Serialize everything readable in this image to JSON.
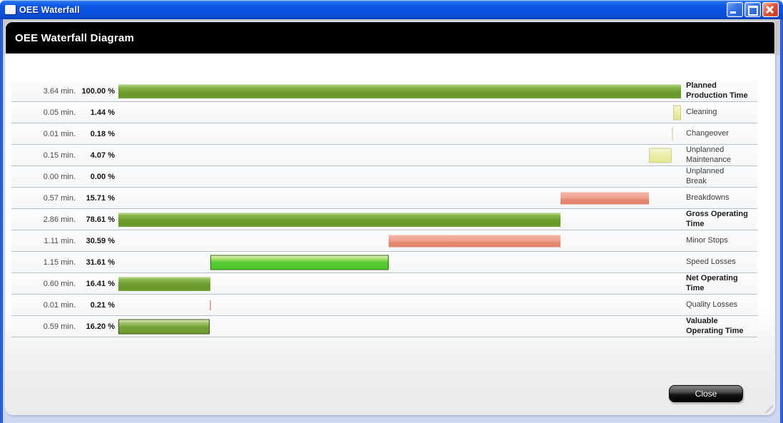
{
  "window": {
    "title": "OEE Waterfall",
    "controls": [
      "minimize",
      "maximize",
      "close"
    ]
  },
  "header": {
    "title": "OEE Waterfall Diagram"
  },
  "footer": {
    "close_label": "Close"
  },
  "colors": {
    "titlebar_blue": "#0c57e8",
    "header_black": "#000000",
    "gain_green": "#6f9f31",
    "loss_red": "#efa18f",
    "loss_yellow": "#ecefae",
    "speed_green": "#58cb34",
    "separator_gray": "#b9bfc8"
  },
  "chart_data": {
    "type": "bar",
    "subtype": "horizontal-waterfall",
    "title": "OEE Waterfall Diagram",
    "x_axis_unit": "% of planned production time",
    "xlim": [
      0,
      100
    ],
    "grid": false,
    "legend_position": "right-inline-labels",
    "categories": [
      "Planned Production Time",
      "Cleaning",
      "Changeover",
      "Unplanned Maintenance",
      "Unplanned Break",
      "Breakdowns",
      "Gross Operating Time",
      "Minor Stops",
      "Speed Losses",
      "Net Operating Time",
      "Quality Losses",
      "Valuable Operating Time"
    ],
    "rows": [
      {
        "time": "3.64 min.",
        "time_min": 3.64,
        "pct": "100.00 %",
        "pct_value": 100.0,
        "label": "Planned\nProduction Time",
        "bold": true,
        "bar_left_pct": 0,
        "bar_width_pct": 100.0,
        "style": "olive"
      },
      {
        "time": "0.05 min.",
        "time_min": 0.05,
        "pct": "1.44 %",
        "pct_value": 1.44,
        "label": "Cleaning",
        "bold": false,
        "bar_left_pct": 98.56,
        "bar_width_pct": 1.44,
        "style": "yellow"
      },
      {
        "time": "0.01 min.",
        "time_min": 0.01,
        "pct": "0.18 %",
        "pct_value": 0.18,
        "label": "Changeover",
        "bold": false,
        "bar_left_pct": 98.38,
        "bar_width_pct": 0.18,
        "style": "yellow-sliver"
      },
      {
        "time": "0.15 min.",
        "time_min": 0.15,
        "pct": "4.07 %",
        "pct_value": 4.07,
        "label": "Unplanned\nMaintenance",
        "bold": false,
        "bar_left_pct": 94.31,
        "bar_width_pct": 4.07,
        "style": "yellow"
      },
      {
        "time": "0.00 min.",
        "time_min": 0.0,
        "pct": "0.00 %",
        "pct_value": 0.0,
        "label": "Unplanned\nBreak",
        "bold": false,
        "bar_left_pct": 94.31,
        "bar_width_pct": 0.0,
        "style": "none"
      },
      {
        "time": "0.57 min.",
        "time_min": 0.57,
        "pct": "15.71 %",
        "pct_value": 15.71,
        "label": "Breakdowns",
        "bold": false,
        "bar_left_pct": 78.6,
        "bar_width_pct": 15.71,
        "style": "red"
      },
      {
        "time": "2.86 min.",
        "time_min": 2.86,
        "pct": "78.61 %",
        "pct_value": 78.61,
        "label": "Gross Operating\nTime",
        "bold": true,
        "bar_left_pct": 0,
        "bar_width_pct": 78.61,
        "style": "olive"
      },
      {
        "time": "1.11 min.",
        "time_min": 1.11,
        "pct": "30.59 %",
        "pct_value": 30.59,
        "label": "Minor Stops",
        "bold": false,
        "bar_left_pct": 48.02,
        "bar_width_pct": 30.59,
        "style": "red"
      },
      {
        "time": "1.15 min.",
        "time_min": 1.15,
        "pct": "31.61 %",
        "pct_value": 31.61,
        "label": "Speed Losses",
        "bold": false,
        "bar_left_pct": 16.41,
        "bar_width_pct": 31.61,
        "style": "bright"
      },
      {
        "time": "0.60 min.",
        "time_min": 0.6,
        "pct": "16.41 %",
        "pct_value": 16.41,
        "label": "Net Operating\nTime",
        "bold": true,
        "bar_left_pct": 0,
        "bar_width_pct": 16.41,
        "style": "olive"
      },
      {
        "time": "0.01 min.",
        "time_min": 0.01,
        "pct": "0.21 %",
        "pct_value": 0.21,
        "label": "Quality Losses",
        "bold": false,
        "bar_left_pct": 16.2,
        "bar_width_pct": 0.21,
        "style": "red-sliver"
      },
      {
        "time": "0.59 min.",
        "time_min": 0.59,
        "pct": "16.20 %",
        "pct_value": 16.2,
        "label": "Valuable\nOperating Time",
        "bold": true,
        "bar_left_pct": 0,
        "bar_width_pct": 16.2,
        "style": "olive-bordered"
      }
    ]
  }
}
